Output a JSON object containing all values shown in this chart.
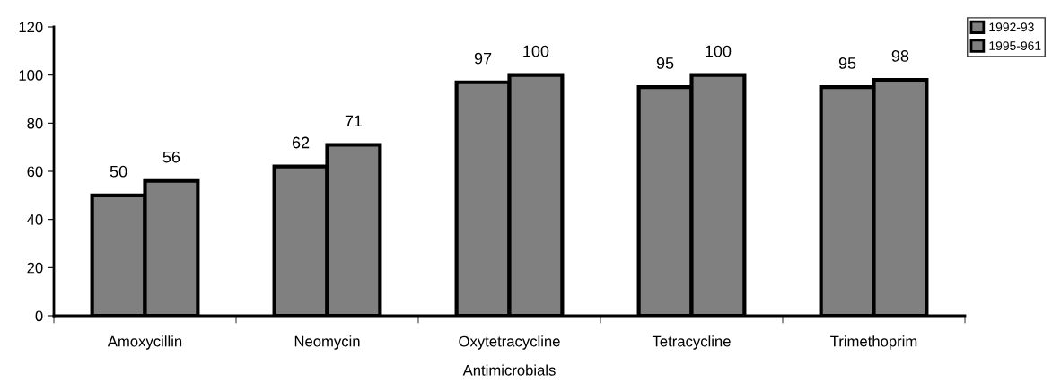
{
  "chart_data": {
    "type": "bar",
    "xlabel": "Antimicrobials",
    "categories": [
      "Amoxycillin",
      "Neomycin",
      "Oxytetracycline",
      "Tetracycline",
      "Trimethoprim"
    ],
    "series": [
      {
        "name": "1992-93",
        "color": "#808080",
        "values": [
          50,
          62,
          97,
          95,
          95
        ]
      },
      {
        "name": "1995-961",
        "color": "#808080",
        "values": [
          56,
          71,
          100,
          100,
          98
        ]
      }
    ],
    "ylim": [
      0,
      120
    ],
    "yticks": [
      0,
      20,
      40,
      60,
      80,
      100,
      120
    ],
    "data_labels": true,
    "grid": false,
    "legend": "top right"
  }
}
